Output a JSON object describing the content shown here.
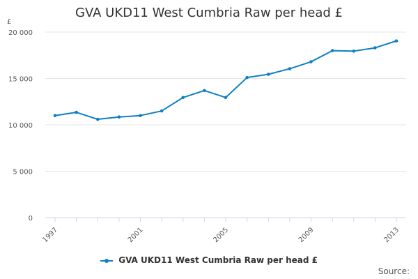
{
  "chart_data": {
    "type": "line",
    "title": "GVA UKD11 West Cumbria Raw per head £",
    "ylabel": "£",
    "xlabel": "",
    "x": [
      1997,
      1998,
      1999,
      2000,
      2001,
      2002,
      2003,
      2004,
      2005,
      2006,
      2007,
      2008,
      2009,
      2010,
      2011,
      2012,
      2013
    ],
    "x_tick_labels": [
      "1997",
      "2001",
      "2005",
      "2009",
      "2013"
    ],
    "y_tick_labels": [
      "0",
      "5 000",
      "10 000",
      "15 000",
      "20 000"
    ],
    "ylim": [
      0,
      20000
    ],
    "grid": true,
    "legend_position": "bottom",
    "series": [
      {
        "name": "GVA UKD11 West Cumbria Raw per head £",
        "color": "#0f7fc4",
        "values": [
          11000,
          11350,
          10600,
          10850,
          11000,
          11500,
          12950,
          13700,
          12950,
          15100,
          15450,
          16050,
          16800,
          18000,
          17950,
          18300,
          19050
        ]
      }
    ]
  },
  "source_label": "Source:"
}
